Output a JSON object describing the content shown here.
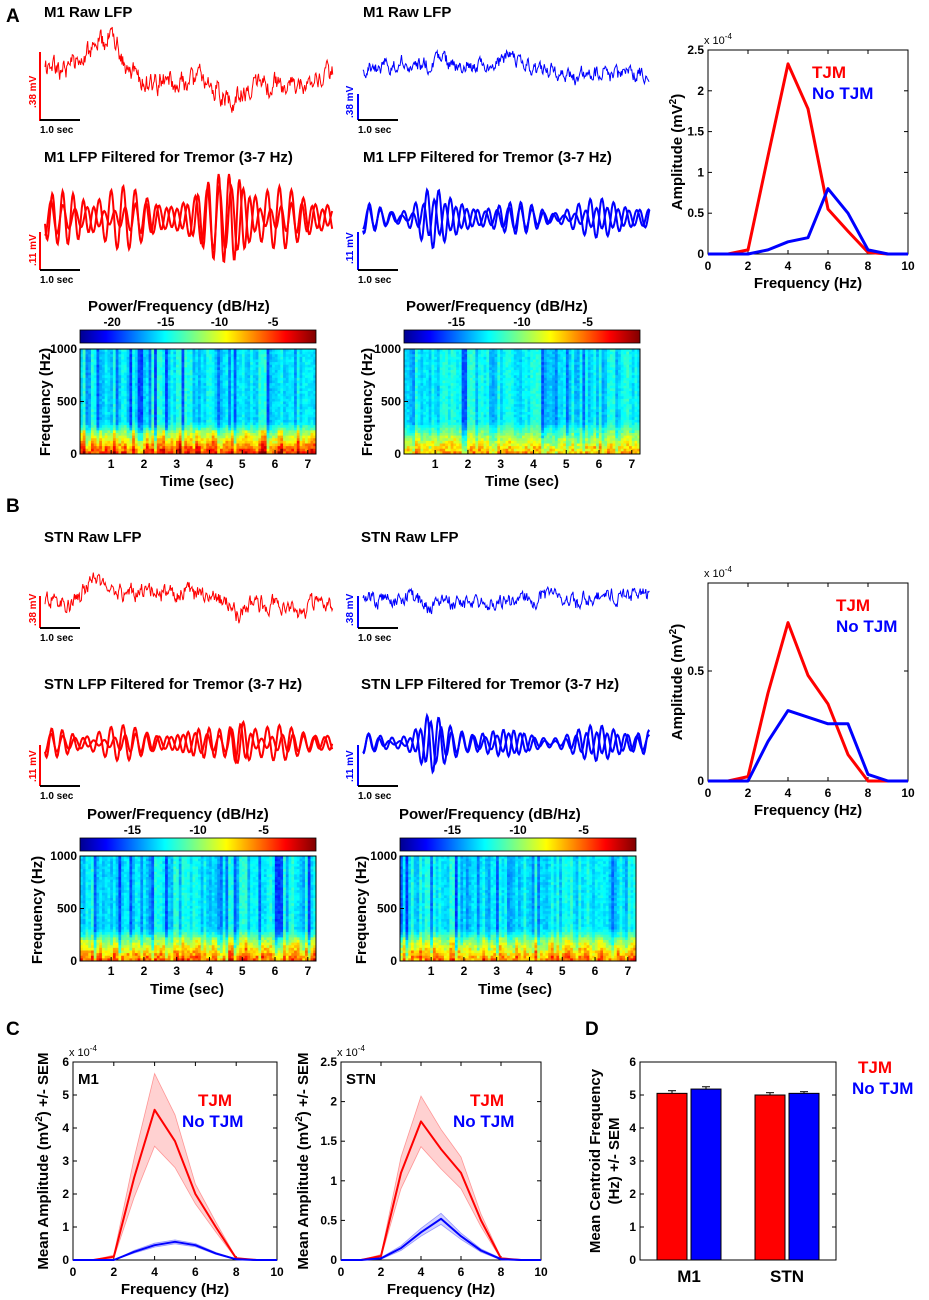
{
  "colors": {
    "tjm": "#ff0000",
    "no_tjm": "#0000ff",
    "axis": "#000000"
  },
  "panel_labels": {
    "A": "A",
    "B": "B",
    "C": "C",
    "D": "D"
  },
  "common": {
    "scale_time": "1.0 sec",
    "spec_ylabel": "Frequency (Hz)",
    "spec_xlabel": "Time (sec)",
    "spec_colorbar_title": "Power/Frequency (dB/Hz)",
    "spec_xticks": [
      "1",
      "2",
      "3",
      "4",
      "5",
      "6",
      "7"
    ],
    "spec_yticks": [
      "0",
      "500",
      "1000"
    ],
    "legend_tjm": "TJM",
    "legend_no_tjm": "No TJM",
    "exp_label": "x 10",
    "exp_power": "-4"
  },
  "panelA": {
    "raw_title_left": "M1 Raw LFP",
    "raw_title_right": "M1 Raw LFP",
    "raw_scale_left": ".38 mV",
    "raw_scale_right": ".38 mV",
    "filt_title_left": "M1 LFP Filtered for Tremor (3-7 Hz)",
    "filt_title_right": "M1 LFP Filtered for Tremor (3-7 Hz)",
    "filt_scale_left": ".11 mV",
    "filt_scale_right": ".11 mV",
    "cbar_ticks_left": [
      "-20",
      "-15",
      "-10",
      "-5"
    ],
    "cbar_ticks_right": [
      "-15",
      "-10",
      "-5"
    ]
  },
  "panelB": {
    "raw_title_left": "STN Raw LFP",
    "raw_title_right": "STN Raw LFP",
    "raw_scale_left": ".38 mV",
    "raw_scale_right": ".38 mV",
    "filt_title_left": "STN LFP Filtered for Tremor (3-7 Hz)",
    "filt_title_right": "STN LFP Filtered for Tremor (3-7 Hz)",
    "filt_scale_left": ".11 mV",
    "filt_scale_right": ".11 mV",
    "cbar_ticks_left": [
      "-15",
      "-10",
      "-5"
    ],
    "cbar_ticks_right": [
      "-15",
      "-10",
      "-5"
    ]
  },
  "chart_data": [
    {
      "id": "A-spectrum",
      "type": "line",
      "xlabel": "Frequency (Hz)",
      "ylabel": "Amplitude (mV²)",
      "ylabel_main": "Amplitude (mV",
      "ylabel_sup": "2",
      "ylabel_end": ")",
      "exponent": "x 10^-4",
      "xlim": [
        0,
        10
      ],
      "ylim": [
        0,
        2.5
      ],
      "xticks": [
        "0",
        "2",
        "4",
        "6",
        "8",
        "10"
      ],
      "yticks": [
        "0",
        "0.5",
        "1",
        "1.5",
        "2",
        "2.5"
      ],
      "x": [
        0,
        1,
        2,
        3,
        4,
        5,
        6,
        7,
        8,
        9,
        10
      ],
      "series": [
        {
          "name": "TJM",
          "values": [
            0,
            0,
            0.05,
            1.2,
            2.33,
            1.78,
            0.55,
            0.28,
            0.02,
            0,
            0
          ]
        },
        {
          "name": "No TJM",
          "values": [
            0,
            0,
            0,
            0.05,
            0.15,
            0.2,
            0.8,
            0.5,
            0.05,
            0,
            0
          ]
        }
      ]
    },
    {
      "id": "B-spectrum",
      "type": "line",
      "xlabel": "Frequency (Hz)",
      "ylabel": "Amplitude (mV²)",
      "ylabel_main": "Amplitude (mV",
      "ylabel_sup": "2",
      "ylabel_end": ")",
      "exponent": "x 10^-4",
      "xlim": [
        0,
        10
      ],
      "ylim": [
        0,
        0.9
      ],
      "xticks": [
        "0",
        "2",
        "4",
        "6",
        "8",
        "10"
      ],
      "yticks": [
        "0",
        "0.5"
      ],
      "x": [
        0,
        1,
        2,
        3,
        4,
        5,
        6,
        7,
        8,
        9,
        10
      ],
      "series": [
        {
          "name": "TJM",
          "values": [
            0,
            0,
            0.02,
            0.4,
            0.72,
            0.48,
            0.35,
            0.12,
            0,
            0,
            0
          ]
        },
        {
          "name": "No TJM",
          "values": [
            0,
            0,
            0,
            0.18,
            0.32,
            0.29,
            0.26,
            0.26,
            0.03,
            0,
            0
          ]
        }
      ]
    },
    {
      "id": "C-M1",
      "type": "area",
      "title": "M1",
      "xlabel": "Frequency (Hz)",
      "ylabel": "Mean Amplitude (mV²) +/- SEM",
      "ylabel_pre": "Mean Amplitude (mV",
      "ylabel_sup": "2",
      "ylabel_post": ") +/- SEM",
      "exponent": "x 10^-4",
      "xlim": [
        0,
        10
      ],
      "ylim": [
        0,
        6
      ],
      "xticks": [
        "0",
        "2",
        "4",
        "6",
        "8",
        "10"
      ],
      "yticks": [
        "0",
        "1",
        "2",
        "3",
        "4",
        "5",
        "6"
      ],
      "x": [
        0,
        1,
        2,
        3,
        4,
        5,
        6,
        7,
        8,
        9,
        10
      ],
      "series": [
        {
          "name": "TJM",
          "values": [
            0,
            0,
            0.1,
            2.5,
            4.55,
            3.6,
            2.0,
            1.0,
            0.05,
            0,
            0
          ],
          "sem": [
            0,
            0,
            0.05,
            0.6,
            1.1,
            0.8,
            0.3,
            0.15,
            0.02,
            0,
            0
          ]
        },
        {
          "name": "No TJM",
          "values": [
            0,
            0,
            0,
            0.25,
            0.45,
            0.55,
            0.45,
            0.2,
            0.02,
            0,
            0
          ],
          "sem": [
            0,
            0,
            0,
            0.04,
            0.06,
            0.06,
            0.05,
            0.03,
            0.01,
            0,
            0
          ]
        }
      ]
    },
    {
      "id": "C-STN",
      "type": "area",
      "title": "STN",
      "xlabel": "Frequency (Hz)",
      "ylabel": "Mean Amplitude (mV²) +/- SEM",
      "ylabel_pre": "Mean Amplitude (mV",
      "ylabel_sup": "2",
      "ylabel_post": ") +/- SEM",
      "exponent": "x 10^-4",
      "xlim": [
        0,
        10
      ],
      "ylim": [
        0,
        2.5
      ],
      "xticks": [
        "0",
        "2",
        "4",
        "6",
        "8",
        "10"
      ],
      "yticks": [
        "0",
        "0.5",
        "1",
        "1.5",
        "2",
        "2.5"
      ],
      "x": [
        0,
        1,
        2,
        3,
        4,
        5,
        6,
        7,
        8,
        9,
        10
      ],
      "series": [
        {
          "name": "TJM",
          "values": [
            0,
            0,
            0.05,
            1.1,
            1.75,
            1.4,
            1.1,
            0.5,
            0.02,
            0,
            0
          ],
          "sem": [
            0,
            0,
            0.02,
            0.2,
            0.32,
            0.25,
            0.2,
            0.08,
            0.01,
            0,
            0
          ]
        },
        {
          "name": "No TJM",
          "values": [
            0,
            0,
            0.02,
            0.15,
            0.35,
            0.52,
            0.3,
            0.12,
            0.01,
            0,
            0
          ],
          "sem": [
            0,
            0,
            0.01,
            0.03,
            0.05,
            0.07,
            0.04,
            0.02,
            0.01,
            0,
            0
          ]
        }
      ]
    },
    {
      "id": "D",
      "type": "bar",
      "ylabel": "Mean Centroid Frequency (Hz) +/- SEM",
      "ylabel_line1": "Mean Centroid Frequency",
      "ylabel_line2": "(Hz) +/- SEM",
      "ylim": [
        0,
        6
      ],
      "yticks": [
        "0",
        "1",
        "2",
        "3",
        "4",
        "5",
        "6"
      ],
      "categories": [
        "M1",
        "STN"
      ],
      "series": [
        {
          "name": "TJM",
          "values": [
            5.05,
            5.0
          ],
          "sem": [
            0.08,
            0.07
          ]
        },
        {
          "name": "No TJM",
          "values": [
            5.18,
            5.05
          ],
          "sem": [
            0.07,
            0.05
          ]
        }
      ]
    }
  ]
}
